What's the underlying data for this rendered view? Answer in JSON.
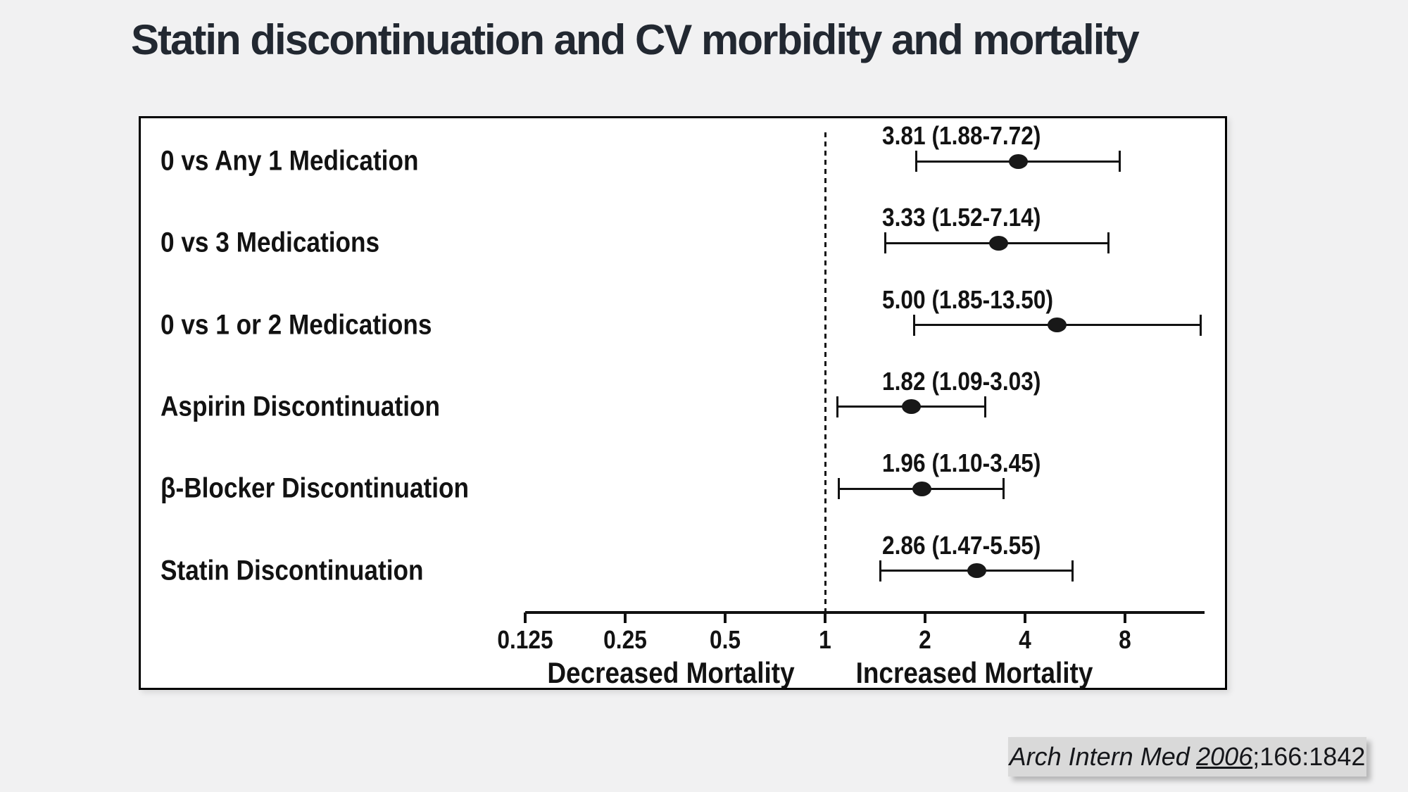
{
  "title": "Statin discontinuation and CV morbidity and mortality",
  "chart_data": {
    "type": "forest",
    "x_scale": "log2",
    "axis_range": [
      0.125,
      13.9
    ],
    "reference_line": 1,
    "x_ticks": [
      0.125,
      0.25,
      0.5,
      1,
      2,
      4,
      8
    ],
    "x_tick_labels": [
      "0.125",
      "0.25",
      "0.5",
      "1",
      "2",
      "4",
      "8"
    ],
    "axis_annotations": [
      {
        "text": "Decreased Mortality",
        "x": 0.343
      },
      {
        "text": "Increased Mortality",
        "x": 2.81
      }
    ],
    "rows": [
      {
        "label": "0 vs Any 1 Medication",
        "display": "3.81 (1.88-7.72)",
        "value": 3.81,
        "low": 1.88,
        "high": 7.72
      },
      {
        "label": "0 vs 3 Medications",
        "display": "3.33 (1.52-7.14)",
        "value": 3.33,
        "low": 1.52,
        "high": 7.14
      },
      {
        "label": "0 vs 1 or 2 Medications",
        "display": "5.00 (1.85-13.50)",
        "value": 5.0,
        "low": 1.85,
        "high": 13.5
      },
      {
        "label": "Aspirin Discontinuation",
        "display": "1.82 (1.09-3.03)",
        "value": 1.82,
        "low": 1.09,
        "high": 3.03
      },
      {
        "label": "β-Blocker Discontinuation",
        "display": "1.96 (1.10-3.45)",
        "value": 1.96,
        "low": 1.1,
        "high": 3.45
      },
      {
        "label": "Statin Discontinuation",
        "display": "2.86 (1.47-5.55)",
        "value": 2.86,
        "low": 1.47,
        "high": 5.55
      }
    ]
  },
  "citation": {
    "journal": "Arch Intern Med",
    "year": "2006",
    "rest": ";166:1842"
  }
}
